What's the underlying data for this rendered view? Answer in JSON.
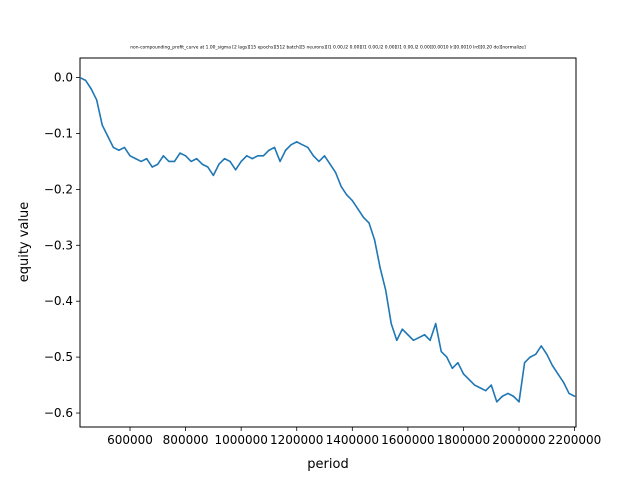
{
  "chart_data": {
    "type": "line",
    "title": "non-compounding_profit_curve at 1.00_sigma [2 lags][15 epochs][512 batch][5 neurons][l1 0.00,l2 0.00][l1 0.00,l2 0.00][l1 0.00,l2 0.00][0.0010 lr][0.0010 lrd][0.20 do][normalize]",
    "xlabel": "period",
    "ylabel": "equity value",
    "xlim": [
      420000,
      2205000
    ],
    "ylim": [
      -0.625,
      0.035
    ],
    "xticks": [
      600000,
      800000,
      1000000,
      1200000,
      1400000,
      1600000,
      1800000,
      2000000,
      2200000
    ],
    "xtick_labels": [
      "600000",
      "800000",
      "1000000",
      "1200000",
      "1400000",
      "1600000",
      "1800000",
      "2000000",
      "2200000"
    ],
    "yticks": [
      0.0,
      -0.1,
      -0.2,
      -0.3,
      -0.4,
      -0.5,
      -0.6
    ],
    "ytick_labels": [
      "0.0",
      "−0.1",
      "−0.2",
      "−0.3",
      "−0.4",
      "−0.5",
      "−0.6"
    ],
    "grid": false,
    "series": [
      {
        "color": "#1f77b4",
        "x": [
          420000,
          440000,
          460000,
          480000,
          500000,
          520000,
          540000,
          560000,
          580000,
          600000,
          620000,
          640000,
          660000,
          680000,
          700000,
          720000,
          740000,
          760000,
          780000,
          800000,
          820000,
          840000,
          860000,
          880000,
          900000,
          920000,
          940000,
          960000,
          980000,
          1000000,
          1020000,
          1040000,
          1060000,
          1080000,
          1100000,
          1120000,
          1140000,
          1160000,
          1180000,
          1200000,
          1220000,
          1240000,
          1260000,
          1280000,
          1300000,
          1320000,
          1340000,
          1360000,
          1380000,
          1400000,
          1420000,
          1440000,
          1460000,
          1480000,
          1500000,
          1520000,
          1540000,
          1560000,
          1580000,
          1600000,
          1620000,
          1640000,
          1660000,
          1680000,
          1700000,
          1720000,
          1740000,
          1760000,
          1780000,
          1800000,
          1820000,
          1840000,
          1860000,
          1880000,
          1900000,
          1920000,
          1940000,
          1960000,
          1980000,
          2000000,
          2020000,
          2040000,
          2060000,
          2080000,
          2100000,
          2120000,
          2140000,
          2160000,
          2180000,
          2200000
        ],
        "y": [
          0.0,
          -0.005,
          -0.02,
          -0.04,
          -0.085,
          -0.105,
          -0.125,
          -0.13,
          -0.125,
          -0.14,
          -0.145,
          -0.15,
          -0.145,
          -0.16,
          -0.155,
          -0.14,
          -0.15,
          -0.15,
          -0.135,
          -0.14,
          -0.15,
          -0.145,
          -0.155,
          -0.16,
          -0.175,
          -0.155,
          -0.145,
          -0.15,
          -0.165,
          -0.15,
          -0.14,
          -0.145,
          -0.14,
          -0.14,
          -0.13,
          -0.125,
          -0.15,
          -0.13,
          -0.12,
          -0.115,
          -0.12,
          -0.125,
          -0.14,
          -0.15,
          -0.14,
          -0.155,
          -0.17,
          -0.195,
          -0.21,
          -0.22,
          -0.235,
          -0.25,
          -0.26,
          -0.29,
          -0.34,
          -0.38,
          -0.44,
          -0.47,
          -0.45,
          -0.46,
          -0.47,
          -0.465,
          -0.46,
          -0.47,
          -0.44,
          -0.49,
          -0.5,
          -0.52,
          -0.51,
          -0.53,
          -0.54,
          -0.55,
          -0.555,
          -0.56,
          -0.55,
          -0.58,
          -0.57,
          -0.565,
          -0.57,
          -0.58,
          -0.51,
          -0.5,
          -0.495,
          -0.48,
          -0.495,
          -0.515,
          -0.53,
          -0.545,
          -0.565,
          -0.57
        ]
      }
    ]
  }
}
